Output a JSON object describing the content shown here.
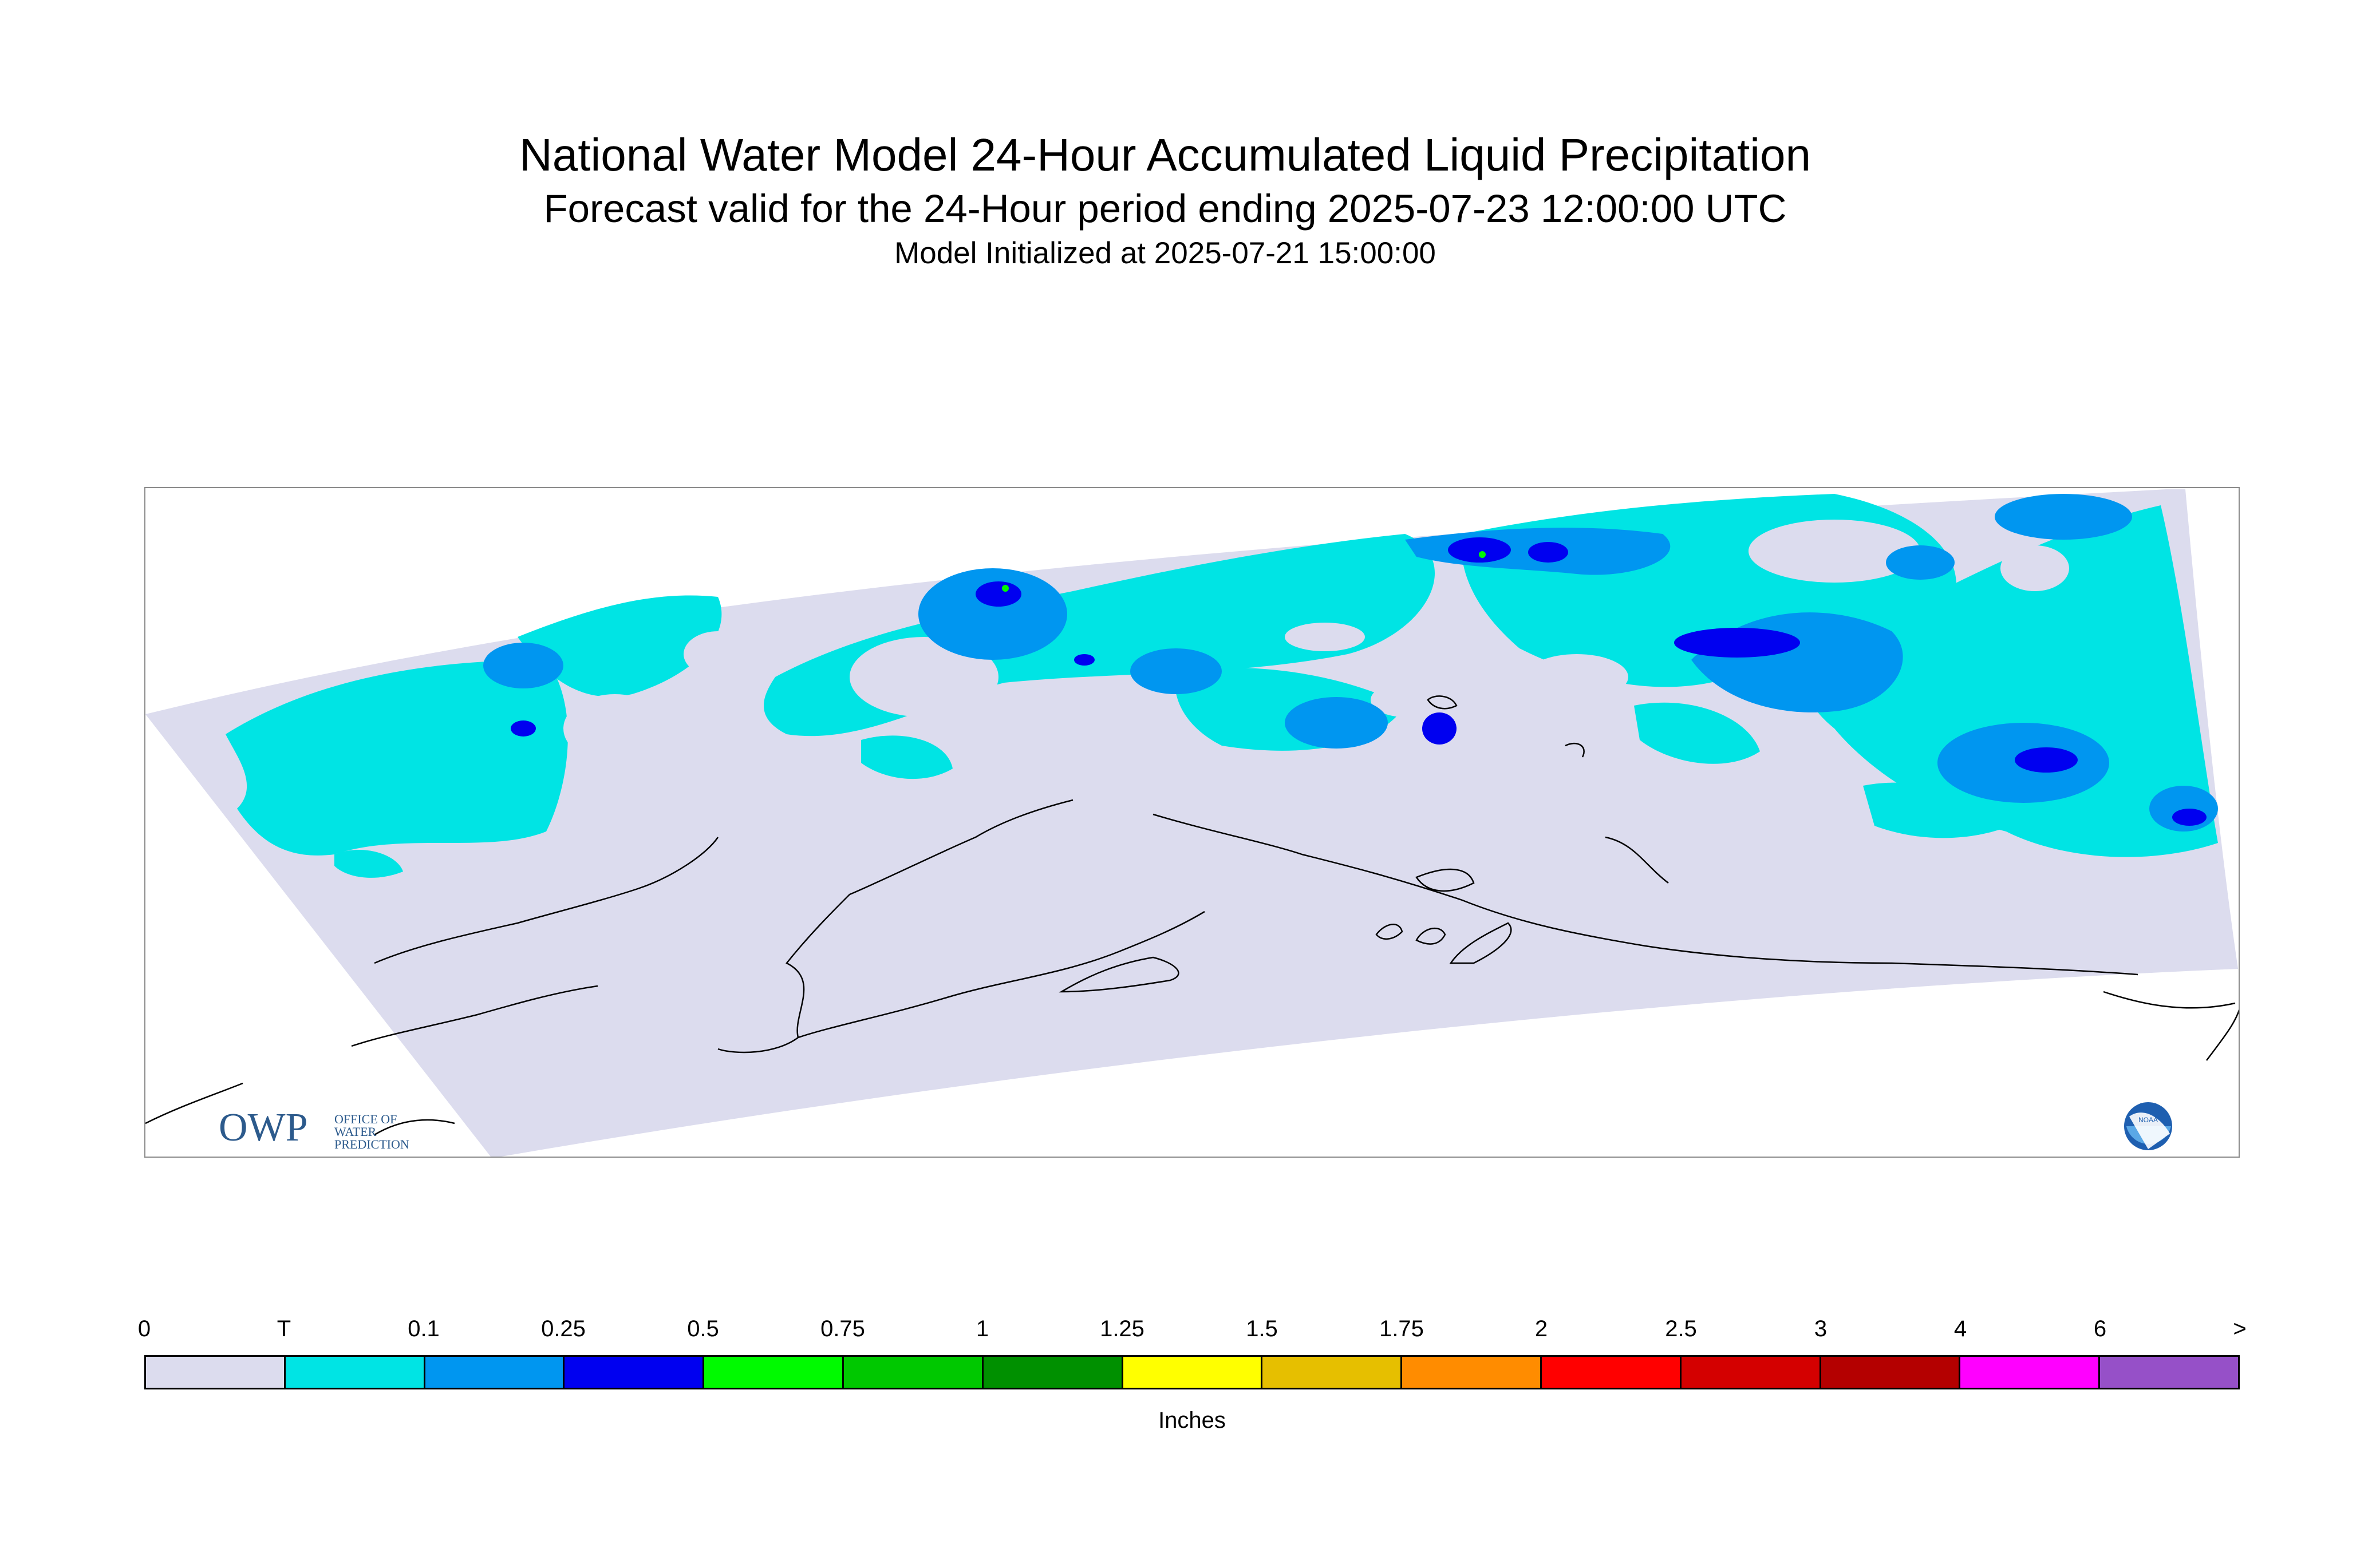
{
  "header": {
    "title": "National Water Model 24-Hour Accumulated Liquid Precipitation",
    "subtitle": "Forecast valid for the 24-Hour period ending 2025-07-23 12:00:00 UTC",
    "init_line": "Model Initialized at 2025-07-21 15:00:00"
  },
  "logos": {
    "owp_mark": "OWP",
    "owp_line1": "OFFICE OF",
    "owp_line2": "WATER",
    "owp_line3": "PREDICTION",
    "noaa_mark": "NOAA"
  },
  "colors": {
    "zero": "#dcdcee",
    "trace": "#00e4e4",
    "p01": "#0096f0",
    "p025": "#0000f0",
    "p05": "#00fa00",
    "coast": "#000000"
  },
  "legend": {
    "ticks": [
      "0",
      "T",
      "0.1",
      "0.25",
      "0.5",
      "0.75",
      "1",
      "1.25",
      "1.5",
      "1.75",
      "2",
      "2.5",
      "3",
      "4",
      "6",
      ">"
    ],
    "colors": [
      "#dcdcee",
      "#00e4e4",
      "#0096f0",
      "#0000f0",
      "#00fa00",
      "#00c800",
      "#009000",
      "#ffff00",
      "#e6bf00",
      "#ff8c00",
      "#ff0000",
      "#d40000",
      "#b40000",
      "#ff00ff",
      "#9650c8"
    ],
    "unit": "Inches"
  }
}
